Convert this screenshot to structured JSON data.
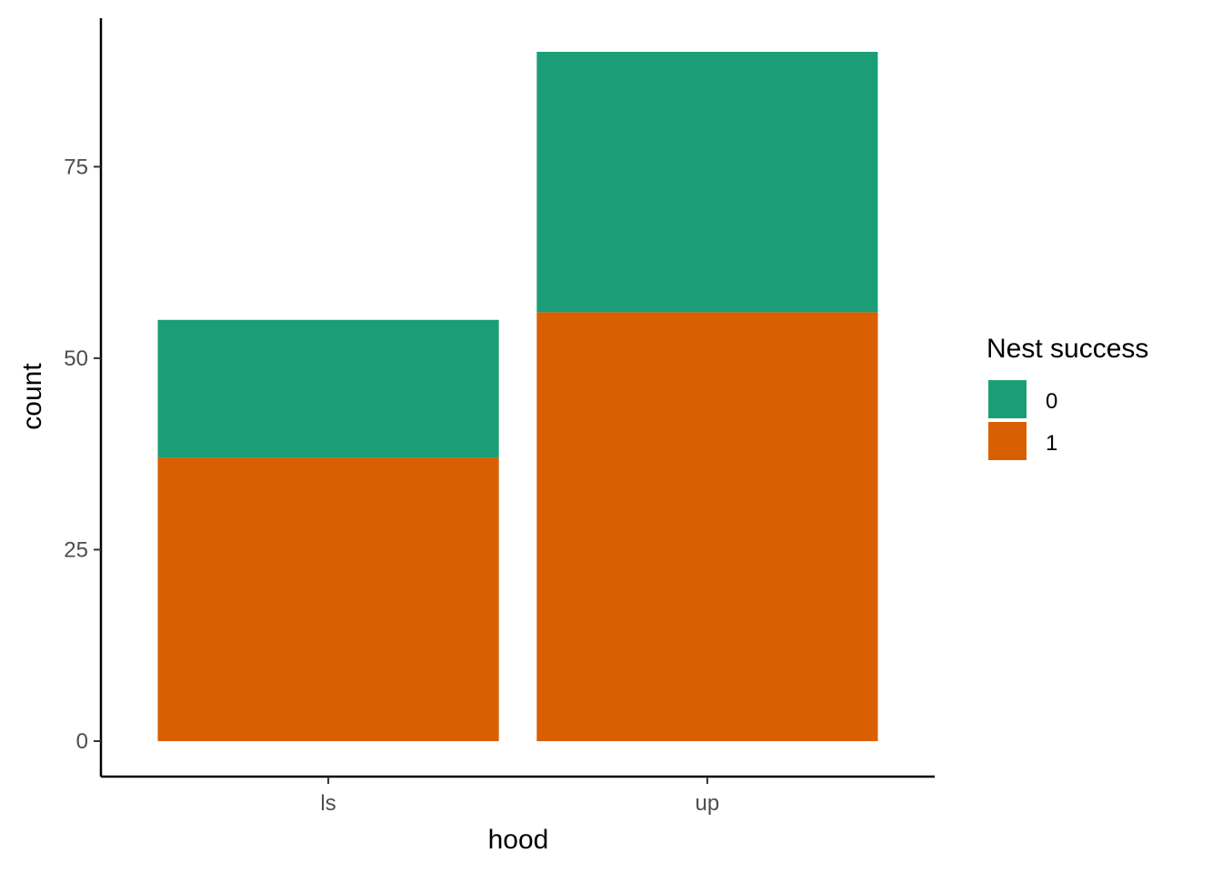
{
  "chart_data": {
    "type": "bar",
    "stacked": true,
    "categories": [
      "ls",
      "up"
    ],
    "series": [
      {
        "name": "0",
        "values": [
          18,
          34
        ],
        "color": "#1b9e77"
      },
      {
        "name": "1",
        "values": [
          37,
          56
        ],
        "color": "#d95f02"
      }
    ],
    "xlabel": "hood",
    "ylabel": "count",
    "ylim": [
      0,
      90
    ],
    "yticks": [
      0,
      25,
      50,
      75
    ],
    "grid": false,
    "legend": {
      "title": "Nest success",
      "position": "right"
    }
  }
}
